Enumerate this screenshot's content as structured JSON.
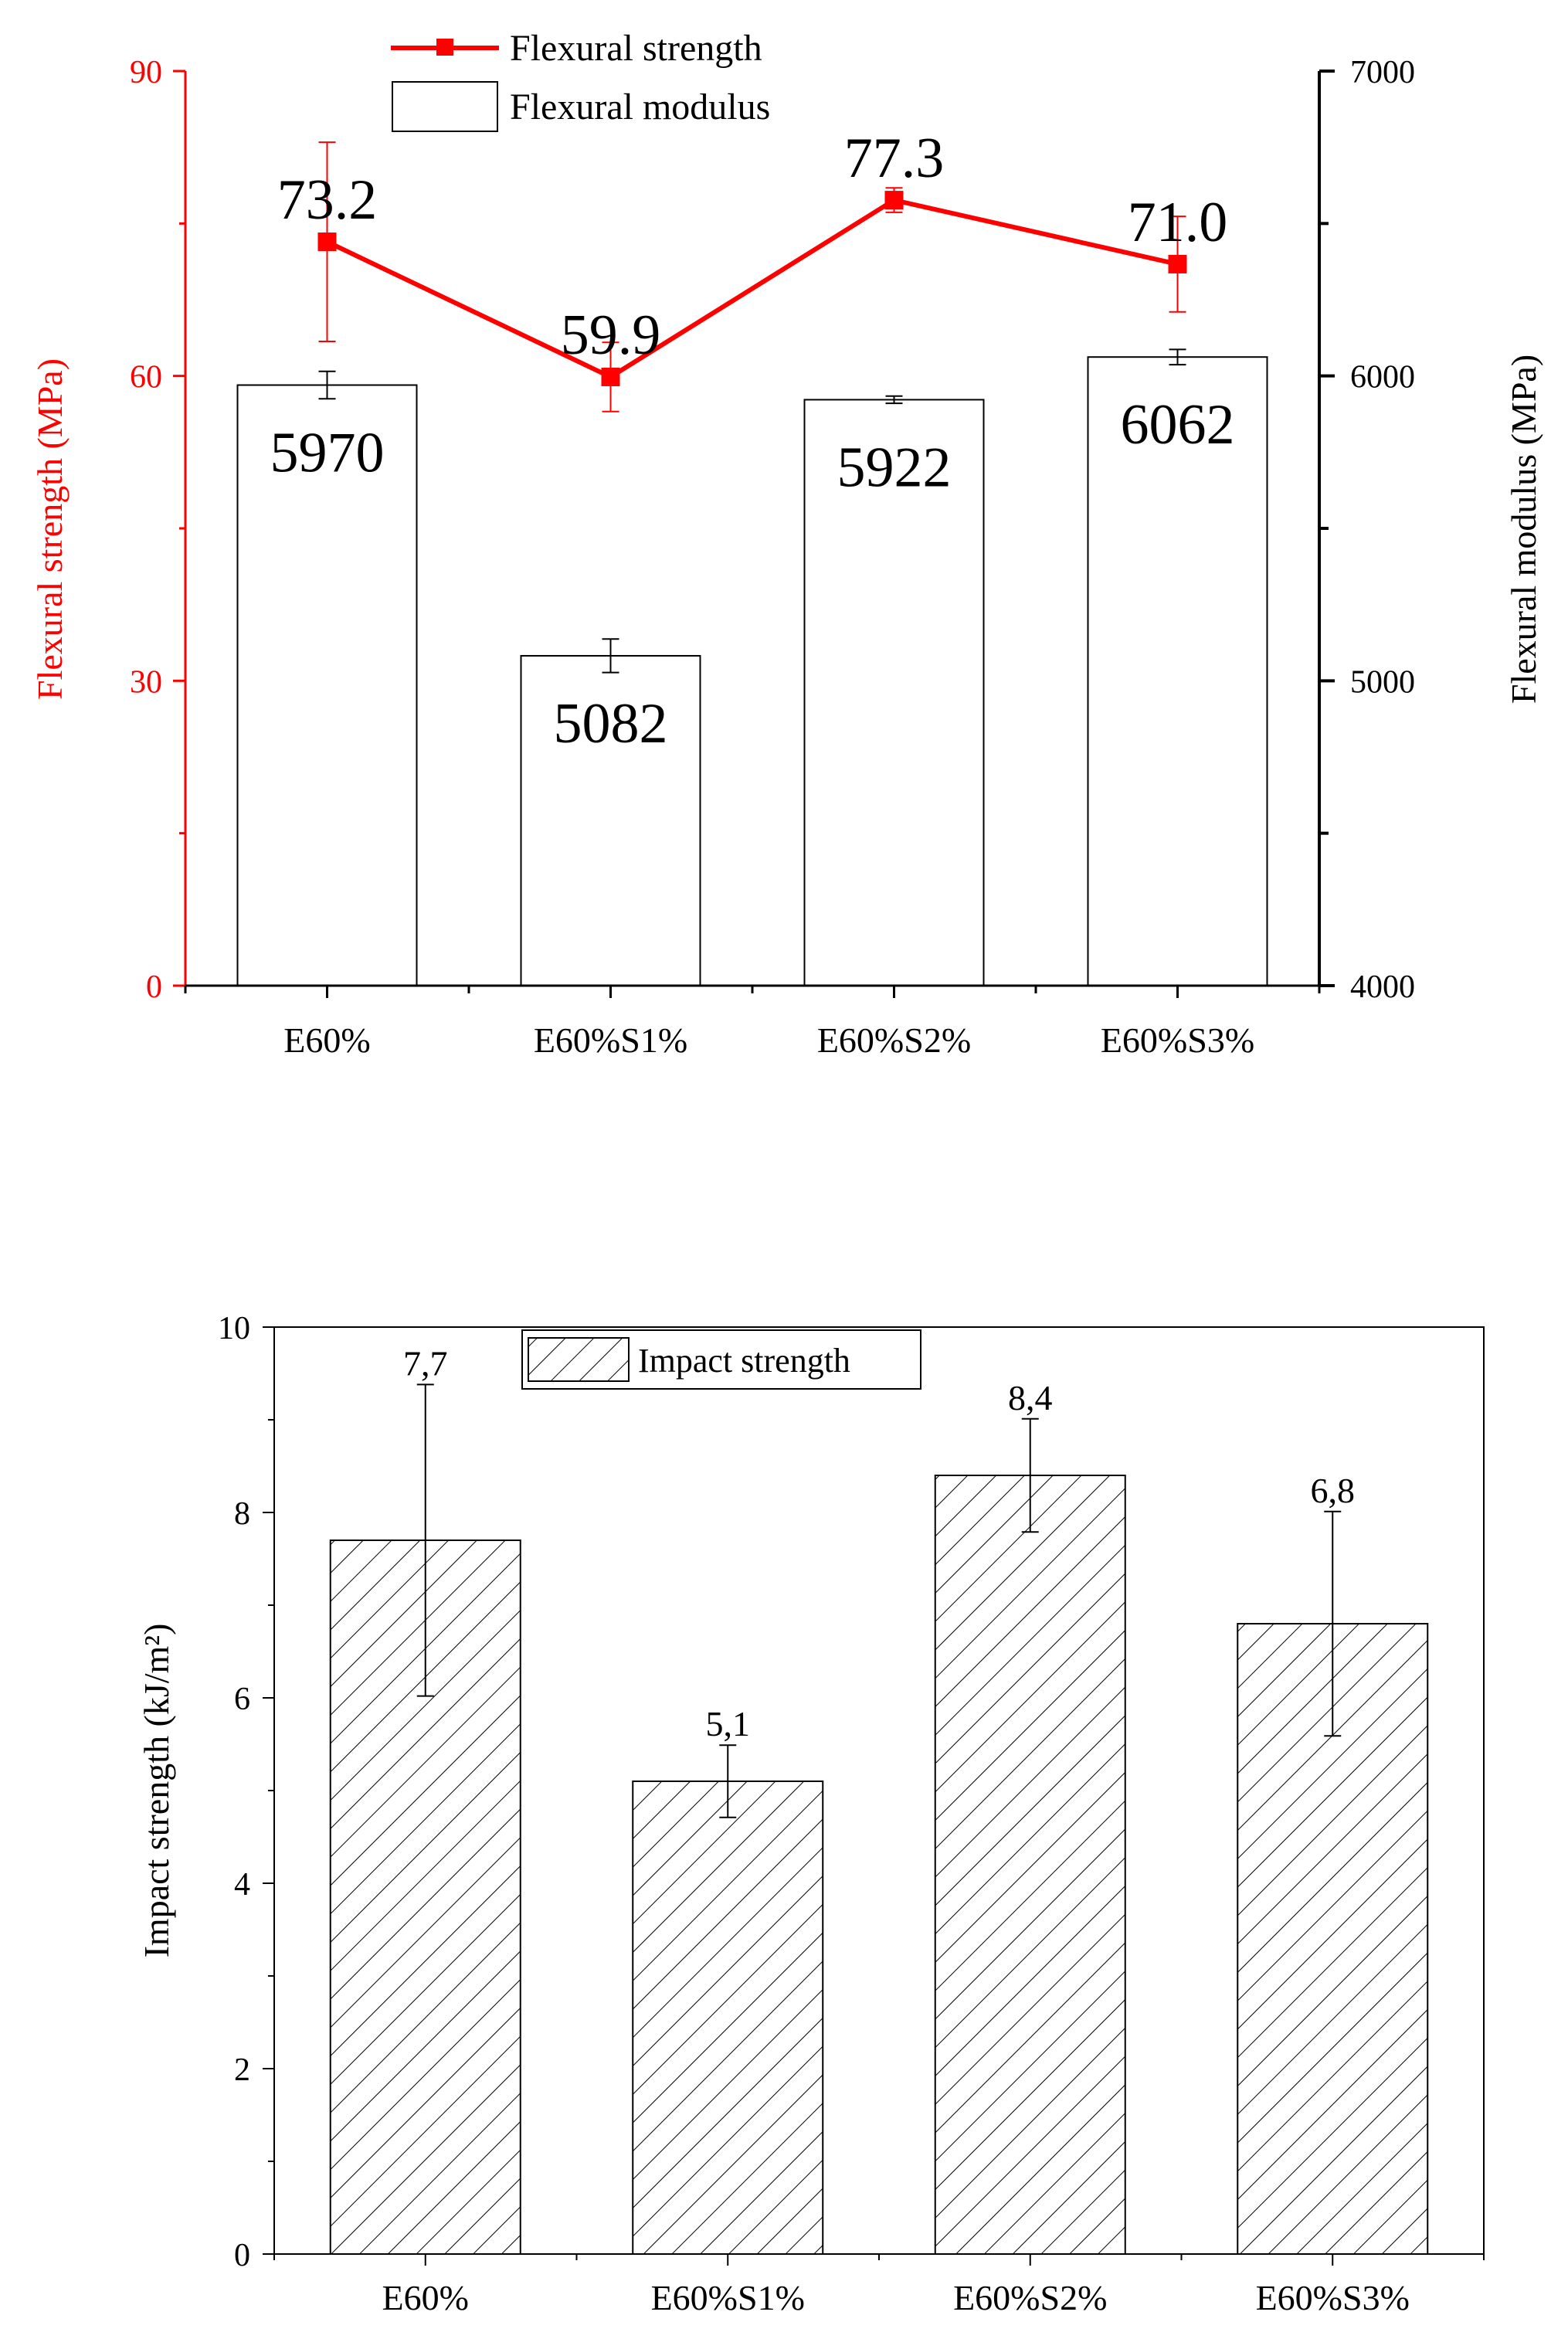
{
  "chart_data": [
    {
      "type": "bar+line",
      "title": "",
      "categories": [
        "E60%",
        "E60%S1%",
        "E60%S2%",
        "E60%S3%"
      ],
      "xlabel": "",
      "y_left": {
        "label": "Flexural strength (MPa)",
        "ylim": [
          0,
          90
        ],
        "ticks": [
          0,
          30,
          60,
          90
        ],
        "tick_labels": [
          "0",
          "30",
          "60",
          "90"
        ],
        "color": "#ff0000"
      },
      "y_right": {
        "label": "Flexural modulus (MPa)",
        "ylim": [
          4000,
          7000
        ],
        "ticks": [
          4000,
          5000,
          6000,
          7000
        ],
        "tick_labels": [
          "4000",
          "5000",
          "6000",
          "7000"
        ],
        "color": "#000000"
      },
      "series": [
        {
          "name": "Flexural strength",
          "type": "line",
          "axis": "left",
          "color": "#ff0000",
          "values": [
            73.2,
            59.9,
            77.3,
            71.0
          ],
          "errors": [
            9.8,
            3.4,
            1.2,
            4.7
          ],
          "labels": [
            "73.2",
            "59.9",
            "77.3",
            "71.0"
          ]
        },
        {
          "name": "Flexural modulus",
          "type": "bar",
          "axis": "right",
          "color": "#ffffff",
          "values": [
            5970,
            5082,
            5922,
            6062
          ],
          "errors": [
            45,
            55,
            12,
            25
          ],
          "labels": [
            "5970",
            "5082",
            "5922",
            "6062"
          ]
        }
      ],
      "legend": {
        "position": "top-center",
        "entries": [
          "Flexural strength",
          "Flexural modulus"
        ]
      }
    },
    {
      "type": "bar",
      "title": "",
      "categories": [
        "E60%",
        "E60%S1%",
        "E60%S2%",
        "E60%S3%"
      ],
      "xlabel": "",
      "ylabel": "Impact strength (kJ/m²)",
      "ylim": [
        0,
        10
      ],
      "yticks": [
        0,
        2,
        4,
        6,
        8,
        10
      ],
      "ytick_labels": [
        "0",
        "2",
        "4",
        "6",
        "8",
        "10"
      ],
      "series": [
        {
          "name": "Impact strength",
          "pattern": "diagonal-hatch",
          "values": [
            7.7,
            5.1,
            8.4,
            6.8
          ],
          "errors": [
            1.68,
            0.39,
            0.61,
            1.21
          ],
          "labels": [
            "7,7",
            "5,1",
            "8,4",
            "6,8"
          ]
        }
      ],
      "legend": {
        "position": "top-center",
        "entries": [
          "Impact strength"
        ]
      }
    }
  ]
}
